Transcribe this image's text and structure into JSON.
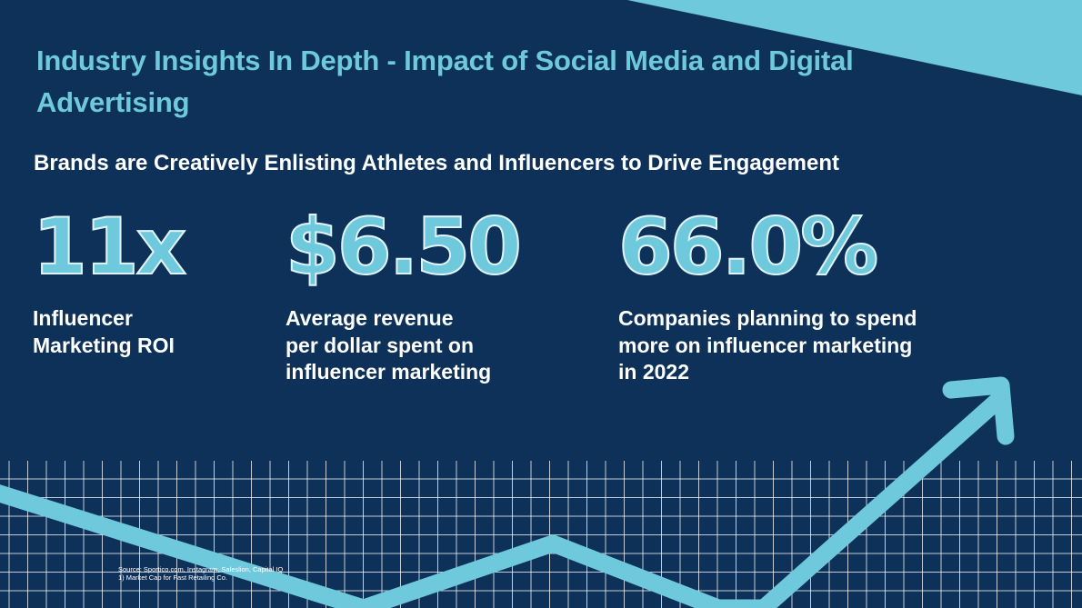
{
  "title": "Industry Insights In Depth - Impact of Social Media and Digital Advertising",
  "subtitle": "Brands are Creatively Enlisting Athletes and Influencers to Drive Engagement",
  "stats": [
    {
      "value": "11x",
      "label_line1": "Influencer",
      "label_line2": "Marketing ROI"
    },
    {
      "value": "$6.50",
      "label_line1": "Average revenue",
      "label_line2": "per dollar spent on",
      "label_line3": "influencer marketing"
    },
    {
      "value": "66.0%",
      "label_line1": "Companies planning to spend",
      "label_line2": "more on influencer marketing",
      "label_line3": "in 2022"
    }
  ],
  "source": {
    "line1": "Source: Sportico.com, Instagram, Saleslion, Capital IQ",
    "line2": "1) Market Cap for Fast Retailing Co."
  },
  "colors": {
    "background": "#0d3159",
    "accent": "#6ec9dd",
    "text": "#ffffff"
  }
}
